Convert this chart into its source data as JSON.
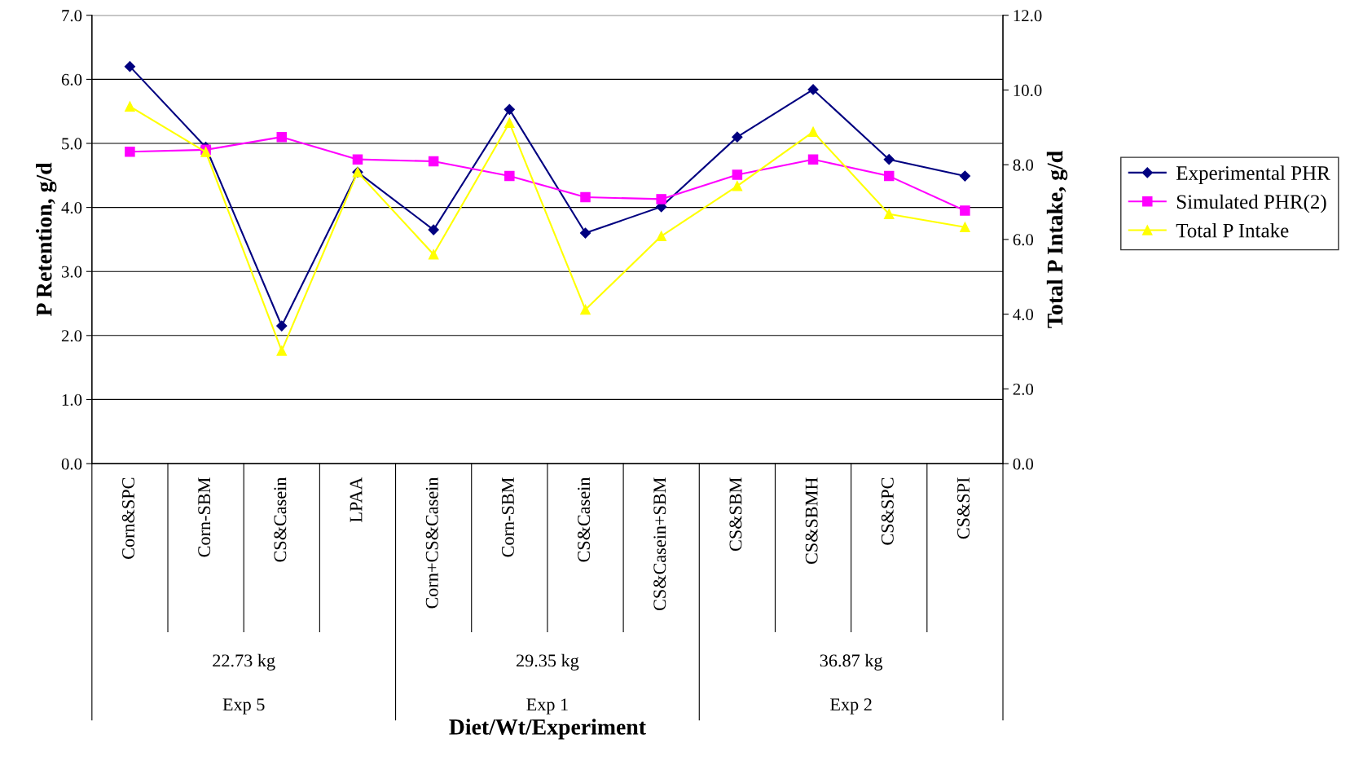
{
  "chart_data": {
    "type": "line",
    "categories": [
      "Corn&SPC",
      "Corn-SBM",
      "CS&Casein",
      "LPAA",
      "Corn+CS&Casein",
      "Corn-SBM",
      "CS&Casein",
      "CS&Casein+SBM",
      "CS&SBM",
      "CS&SBMH",
      "CS&SPC",
      "CS&SPI"
    ],
    "series": [
      {
        "name": "Experimental PHR",
        "color": "#000080",
        "marker": "diamond",
        "values": [
          6.2,
          4.94,
          2.15,
          4.55,
          3.65,
          5.53,
          3.6,
          4.01,
          5.1,
          5.84,
          4.75,
          4.49
        ]
      },
      {
        "name": "Simulated PHR(2)",
        "color": "#ff00ff",
        "marker": "square",
        "values": [
          4.87,
          4.9,
          5.1,
          4.75,
          4.72,
          4.49,
          4.16,
          4.13,
          4.51,
          4.75,
          4.49,
          3.95
        ]
      },
      {
        "name": "Total P Intake",
        "color": "#ffff00",
        "marker": "triangle",
        "axis": "y2",
        "values": [
          9.56,
          8.34,
          3.02,
          7.8,
          5.6,
          9.12,
          4.12,
          6.09,
          7.43,
          8.88,
          6.68,
          6.33
        ]
      }
    ],
    "xlabel": "Diet/Wt/Experiment",
    "ylabel": "P Retention, g/d",
    "y2label": "Total P Intake, g/d",
    "ylim": [
      0,
      7
    ],
    "yticks": [
      {
        "value": 0,
        "label": "0.0"
      },
      {
        "value": 1,
        "label": "1.0"
      },
      {
        "value": 2,
        "label": "2.0"
      },
      {
        "value": 3,
        "label": "3.0"
      },
      {
        "value": 4,
        "label": "4.0"
      },
      {
        "value": 5,
        "label": "5.0"
      },
      {
        "value": 6,
        "label": "6.0"
      },
      {
        "value": 7,
        "label": "7.0"
      }
    ],
    "y2lim": [
      0,
      12
    ],
    "y2ticks": [
      {
        "value": 0,
        "label": "0.0"
      },
      {
        "value": 2,
        "label": "2.0"
      },
      {
        "value": 4,
        "label": "4.0"
      },
      {
        "value": 6,
        "label": "6.0"
      },
      {
        "value": 8,
        "label": "8.0"
      },
      {
        "value": 10,
        "label": "10.0"
      },
      {
        "value": 12,
        "label": "12.0"
      }
    ],
    "annotations": [
      "22.73 kg",
      "Exp 5",
      "29.35 kg",
      "Exp 1",
      "36.87 kg",
      "Exp 2"
    ],
    "grid": "y",
    "legend": "right"
  }
}
